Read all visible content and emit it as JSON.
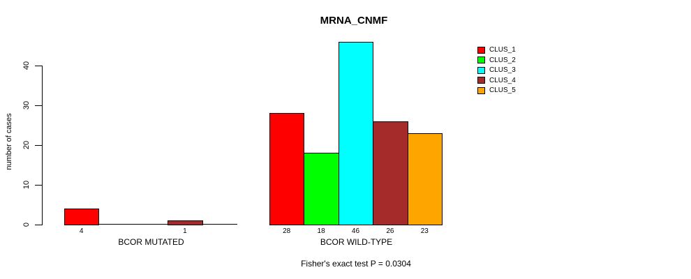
{
  "chart_data": {
    "type": "bar",
    "title": "MRNA_CNMF",
    "ylabel": "number of cases",
    "xlabel": "",
    "ylim": [
      0,
      46
    ],
    "yticks": [
      0,
      10,
      20,
      30,
      40
    ],
    "grid": false,
    "legend_position": "top-right",
    "categories": [
      "BCOR MUTATED",
      "BCOR WILD-TYPE"
    ],
    "series": [
      {
        "name": "CLUS_1",
        "color": "#ff0000",
        "values": [
          4,
          28
        ]
      },
      {
        "name": "CLUS_2",
        "color": "#00ff00",
        "values": [
          0,
          18
        ]
      },
      {
        "name": "CLUS_3",
        "color": "#00ffff",
        "values": [
          0,
          46
        ]
      },
      {
        "name": "CLUS_4",
        "color": "#a52a2a",
        "values": [
          1,
          26
        ]
      },
      {
        "name": "CLUS_5",
        "color": "#ffa500",
        "values": [
          0,
          23
        ]
      }
    ],
    "bar_value_labels": {
      "BCOR MUTATED": [
        4,
        null,
        null,
        1,
        null
      ],
      "BCOR WILD-TYPE": [
        28,
        18,
        46,
        26,
        23
      ]
    },
    "annotation": "Fisher's exact test P = 0.0304"
  }
}
